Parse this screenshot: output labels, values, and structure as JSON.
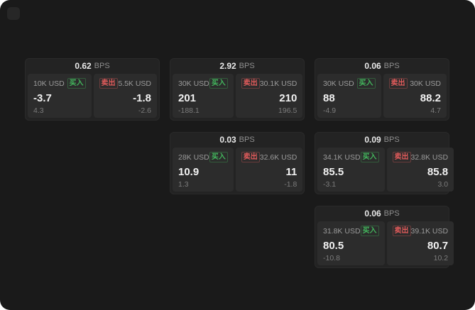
{
  "app": {
    "background": "#1a1a1a",
    "card_background": "#232323",
    "panel_background": "#2c2c2c"
  },
  "colors": {
    "buy_accent": "#43b75d",
    "sell_accent": "#e25b5b",
    "price_text": "#f2f2f2",
    "muted_text": "#8f8f8f"
  },
  "labels": {
    "bps": "BPS",
    "buy": "买入",
    "sell": "卖出"
  },
  "cards": [
    {
      "bps": "0.62",
      "buy": {
        "size": "10K USD",
        "price": "-3.7",
        "delta": "4.3"
      },
      "sell": {
        "size": "5.5K USD",
        "price": "-1.8",
        "delta": "-2.6"
      }
    },
    {
      "bps": "2.92",
      "buy": {
        "size": "30K USD",
        "price": "201",
        "delta": "-188.1"
      },
      "sell": {
        "size": "30.1K USD",
        "price": "210",
        "delta": "196.5"
      }
    },
    {
      "bps": "0.06",
      "buy": {
        "size": "30K USD",
        "price": "88",
        "delta": "-4.9"
      },
      "sell": {
        "size": "30K USD",
        "price": "88.2",
        "delta": "4.7"
      }
    },
    {
      "bps": "0.03",
      "buy": {
        "size": "28K USD",
        "price": "10.9",
        "delta": "1.3"
      },
      "sell": {
        "size": "32.6K USD",
        "price": "11",
        "delta": "-1.8"
      }
    },
    {
      "bps": "0.09",
      "buy": {
        "size": "34.1K USD",
        "price": "85.5",
        "delta": "-3.1"
      },
      "sell": {
        "size": "32.8K USD",
        "price": "85.8",
        "delta": "3.0"
      }
    },
    {
      "bps": "0.06",
      "buy": {
        "size": "31.8K USD",
        "price": "80.5",
        "delta": "-10.8"
      },
      "sell": {
        "size": "39.1K USD",
        "price": "80.7",
        "delta": "10.2"
      }
    }
  ]
}
